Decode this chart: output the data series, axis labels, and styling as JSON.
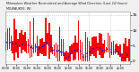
{
  "title": "Milwaukee Weather Normalized and Average Wind Direction (Last 24 Hours)",
  "subtitle": "MILWAUKEE, WI",
  "bg_color": "#f0f0f0",
  "plot_bg": "#ffffff",
  "grid_color": "#bbbbbb",
  "bar_color": "#ff0000",
  "line_color": "#0000dd",
  "ylim": [
    -1,
    16
  ],
  "yticks": [
    0,
    5,
    10,
    15
  ],
  "n_points": 72,
  "seed": 7
}
